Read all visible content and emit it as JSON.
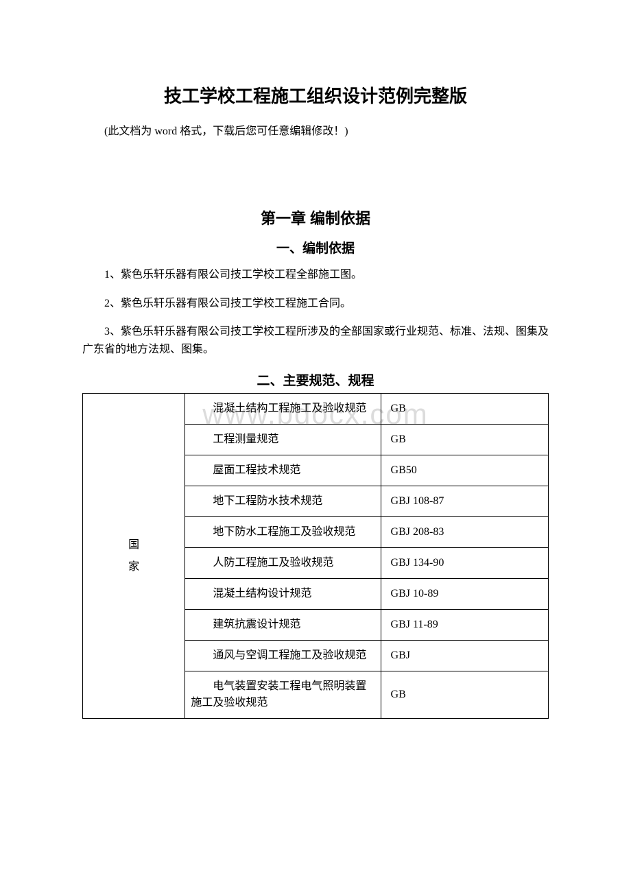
{
  "doc": {
    "title": "技工学校工程施工组织设计范例完整版",
    "note": "(此文档为 word 格式，下载后您可任意编辑修改！)",
    "watermark": "www.bdocx.com"
  },
  "chapter": {
    "title": "第一章 编制依据"
  },
  "section1": {
    "title": "一、编制依据",
    "items": [
      "1、紫色乐轩乐器有限公司技工学校工程全部施工图。",
      "2、紫色乐轩乐器有限公司技工学校工程施工合同。",
      "3、紫色乐轩乐器有限公司技工学校工程所涉及的全部国家或行业规范、标准、法规、图集及广东省的地方法规、图集。"
    ]
  },
  "section2": {
    "title": "二、主要规范、规程",
    "category": "国\n家",
    "rows": [
      {
        "name": "混凝土结构工程施工及验收规范",
        "code": "GB"
      },
      {
        "name": "工程测量规范",
        "code": "GB"
      },
      {
        "name": "屋面工程技术规范",
        "code": "GB50"
      },
      {
        "name": "地下工程防水技术规范",
        "code": "GBJ 108-87"
      },
      {
        "name": "地下防水工程施工及验收规范",
        "code": "GBJ 208-83"
      },
      {
        "name": "人防工程施工及验收规范",
        "code": "GBJ 134-90"
      },
      {
        "name": "混凝土结构设计规范",
        "code": "GBJ 10-89"
      },
      {
        "name": "建筑抗震设计规范",
        "code": "GBJ 11-89"
      },
      {
        "name": "通风与空调工程施工及验收规范",
        "code": "GBJ"
      },
      {
        "name": "电气装置安装工程电气照明装置施工及验收规范",
        "code": "GB"
      }
    ]
  }
}
